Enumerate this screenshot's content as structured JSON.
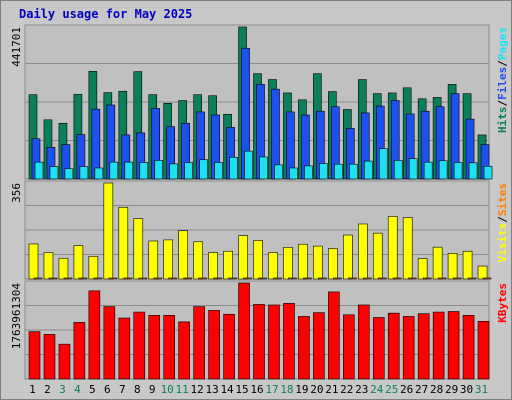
{
  "chart_data": {
    "type": "bar",
    "title": "Daily usage for May 2025",
    "colors": {
      "hits": "#0b7f5c",
      "files": "#1e50f0",
      "pages": "#1ee1f0",
      "visits": "#ffff00",
      "sites": "#ff8000",
      "kbytes": "#ff0000",
      "title": "#0000c0",
      "plot_bg": "#c0c0c0",
      "grid": "#8a8a8a",
      "weekend_label": "#0b7f5c"
    },
    "days": [
      "1",
      "2",
      "3",
      "4",
      "5",
      "6",
      "7",
      "8",
      "9",
      "10",
      "11",
      "12",
      "13",
      "14",
      "15",
      "16",
      "17",
      "18",
      "19",
      "20",
      "21",
      "22",
      "23",
      "24",
      "25",
      "26",
      "27",
      "28",
      "29",
      "30",
      "31"
    ],
    "weekend_days": [
      "3",
      "4",
      "10",
      "11",
      "17",
      "18",
      "24",
      "25",
      "31"
    ],
    "panels": [
      {
        "id": "top",
        "max_label": "441701",
        "ymax": 441701,
        "legend": [
          {
            "text": "Hits",
            "color_key": "hits"
          },
          {
            "text": "/",
            "color_key": "sep"
          },
          {
            "text": "Files",
            "color_key": "files"
          },
          {
            "text": "/",
            "color_key": "sep"
          },
          {
            "text": "Pages",
            "color_key": "pages"
          }
        ],
        "series": [
          {
            "key": "hits",
            "values": [
              245000,
              172000,
              162000,
              246000,
              313000,
              251000,
              255000,
              312000,
              245000,
              220000,
              228000,
              245000,
              242000,
              188000,
              441701,
              306000,
              289000,
              250000,
              230000,
              306000,
              254000,
              202000,
              289000,
              248000,
              250000,
              265000,
              233000,
              237000,
              275000,
              248000,
              128000
            ]
          },
          {
            "key": "files",
            "values": [
              117000,
              92000,
              100000,
              129000,
              203000,
              215000,
              128000,
              134000,
              205000,
              152000,
              162000,
              195000,
              186000,
              150000,
              380000,
              275000,
              261000,
              195000,
              186000,
              197000,
              210000,
              147000,
              192000,
              212000,
              228000,
              189000,
              197000,
              210000,
              248000,
              174000,
              100000
            ]
          },
          {
            "key": "pages",
            "values": [
              49000,
              36000,
              30000,
              36000,
              32000,
              49000,
              49000,
              48000,
              54000,
              44000,
              48000,
              56000,
              48000,
              63000,
              81000,
              64000,
              41000,
              32000,
              38000,
              45000,
              43000,
              43000,
              52000,
              88000,
              54000,
              59000,
              49000,
              53000,
              48000,
              47000,
              37000
            ]
          }
        ]
      },
      {
        "id": "middle",
        "max_label": "356",
        "ymax": 356,
        "legend": [
          {
            "text": "Visits",
            "color_key": "visits"
          },
          {
            "text": "/",
            "color_key": "sep"
          },
          {
            "text": "Sites",
            "color_key": "sites"
          }
        ],
        "series": [
          {
            "key": "visits",
            "values": [
              130,
              98,
              77,
              124,
              84,
              356,
              266,
              224,
              141,
              145,
              179,
              138,
              98,
              103,
              161,
              143,
              98,
              117,
              129,
              122,
              113,
              163,
              204,
              170,
              232,
              228,
              76,
              118,
              95,
              103,
              48
            ]
          },
          {
            "key": "sites",
            "values": [
              0,
              0,
              0,
              0,
              0,
              0,
              0,
              0,
              0,
              0,
              0,
              0,
              0,
              0,
              0,
              0,
              0,
              0,
              0,
              0,
              0,
              0,
              0,
              0,
              0,
              0,
              0,
              0,
              0,
              0,
              0
            ]
          }
        ]
      },
      {
        "id": "bottom",
        "max_label": "1763961304",
        "ymax": 1763961304,
        "legend": [
          {
            "text": "KBytes",
            "color_key": "kbytes"
          }
        ],
        "series": [
          {
            "key": "kbytes",
            "values": [
              870000000,
              820000000,
              640000000,
              1040000000,
              1620000000,
              1330000000,
              1120000000,
              1230000000,
              1170000000,
              1170000000,
              1050000000,
              1330000000,
              1260000000,
              1190000000,
              1763961304,
              1370000000,
              1360000000,
              1390000000,
              1150000000,
              1220000000,
              1600000000,
              1180000000,
              1360000000,
              1130000000,
              1210000000,
              1150000000,
              1200000000,
              1230000000,
              1240000000,
              1170000000,
              1060000000
            ]
          }
        ]
      }
    ]
  }
}
